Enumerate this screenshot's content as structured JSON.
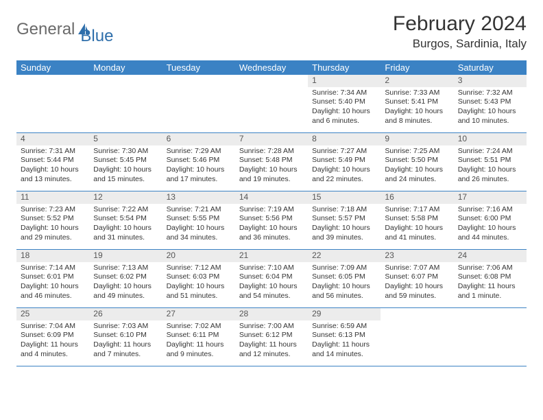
{
  "brand": {
    "name_gray": "General",
    "name_blue": "Blue"
  },
  "title": {
    "month": "February 2024",
    "location": "Burgos, Sardinia, Italy"
  },
  "colors": {
    "header_bg": "#3b82c4",
    "header_text": "#ffffff",
    "daynum_bg": "#ececec",
    "row_border": "#3b82c4",
    "body_text": "#333333",
    "logo_gray": "#6a6a6a",
    "logo_blue": "#2f6fab",
    "page_bg": "#ffffff"
  },
  "calendar": {
    "type": "table",
    "columns": [
      "Sunday",
      "Monday",
      "Tuesday",
      "Wednesday",
      "Thursday",
      "Friday",
      "Saturday"
    ],
    "weeks": [
      [
        null,
        null,
        null,
        null,
        {
          "day": "1",
          "sunrise": "Sunrise: 7:34 AM",
          "sunset": "Sunset: 5:40 PM",
          "daylight": "Daylight: 10 hours and 6 minutes."
        },
        {
          "day": "2",
          "sunrise": "Sunrise: 7:33 AM",
          "sunset": "Sunset: 5:41 PM",
          "daylight": "Daylight: 10 hours and 8 minutes."
        },
        {
          "day": "3",
          "sunrise": "Sunrise: 7:32 AM",
          "sunset": "Sunset: 5:43 PM",
          "daylight": "Daylight: 10 hours and 10 minutes."
        }
      ],
      [
        {
          "day": "4",
          "sunrise": "Sunrise: 7:31 AM",
          "sunset": "Sunset: 5:44 PM",
          "daylight": "Daylight: 10 hours and 13 minutes."
        },
        {
          "day": "5",
          "sunrise": "Sunrise: 7:30 AM",
          "sunset": "Sunset: 5:45 PM",
          "daylight": "Daylight: 10 hours and 15 minutes."
        },
        {
          "day": "6",
          "sunrise": "Sunrise: 7:29 AM",
          "sunset": "Sunset: 5:46 PM",
          "daylight": "Daylight: 10 hours and 17 minutes."
        },
        {
          "day": "7",
          "sunrise": "Sunrise: 7:28 AM",
          "sunset": "Sunset: 5:48 PM",
          "daylight": "Daylight: 10 hours and 19 minutes."
        },
        {
          "day": "8",
          "sunrise": "Sunrise: 7:27 AM",
          "sunset": "Sunset: 5:49 PM",
          "daylight": "Daylight: 10 hours and 22 minutes."
        },
        {
          "day": "9",
          "sunrise": "Sunrise: 7:25 AM",
          "sunset": "Sunset: 5:50 PM",
          "daylight": "Daylight: 10 hours and 24 minutes."
        },
        {
          "day": "10",
          "sunrise": "Sunrise: 7:24 AM",
          "sunset": "Sunset: 5:51 PM",
          "daylight": "Daylight: 10 hours and 26 minutes."
        }
      ],
      [
        {
          "day": "11",
          "sunrise": "Sunrise: 7:23 AM",
          "sunset": "Sunset: 5:52 PM",
          "daylight": "Daylight: 10 hours and 29 minutes."
        },
        {
          "day": "12",
          "sunrise": "Sunrise: 7:22 AM",
          "sunset": "Sunset: 5:54 PM",
          "daylight": "Daylight: 10 hours and 31 minutes."
        },
        {
          "day": "13",
          "sunrise": "Sunrise: 7:21 AM",
          "sunset": "Sunset: 5:55 PM",
          "daylight": "Daylight: 10 hours and 34 minutes."
        },
        {
          "day": "14",
          "sunrise": "Sunrise: 7:19 AM",
          "sunset": "Sunset: 5:56 PM",
          "daylight": "Daylight: 10 hours and 36 minutes."
        },
        {
          "day": "15",
          "sunrise": "Sunrise: 7:18 AM",
          "sunset": "Sunset: 5:57 PM",
          "daylight": "Daylight: 10 hours and 39 minutes."
        },
        {
          "day": "16",
          "sunrise": "Sunrise: 7:17 AM",
          "sunset": "Sunset: 5:58 PM",
          "daylight": "Daylight: 10 hours and 41 minutes."
        },
        {
          "day": "17",
          "sunrise": "Sunrise: 7:16 AM",
          "sunset": "Sunset: 6:00 PM",
          "daylight": "Daylight: 10 hours and 44 minutes."
        }
      ],
      [
        {
          "day": "18",
          "sunrise": "Sunrise: 7:14 AM",
          "sunset": "Sunset: 6:01 PM",
          "daylight": "Daylight: 10 hours and 46 minutes."
        },
        {
          "day": "19",
          "sunrise": "Sunrise: 7:13 AM",
          "sunset": "Sunset: 6:02 PM",
          "daylight": "Daylight: 10 hours and 49 minutes."
        },
        {
          "day": "20",
          "sunrise": "Sunrise: 7:12 AM",
          "sunset": "Sunset: 6:03 PM",
          "daylight": "Daylight: 10 hours and 51 minutes."
        },
        {
          "day": "21",
          "sunrise": "Sunrise: 7:10 AM",
          "sunset": "Sunset: 6:04 PM",
          "daylight": "Daylight: 10 hours and 54 minutes."
        },
        {
          "day": "22",
          "sunrise": "Sunrise: 7:09 AM",
          "sunset": "Sunset: 6:05 PM",
          "daylight": "Daylight: 10 hours and 56 minutes."
        },
        {
          "day": "23",
          "sunrise": "Sunrise: 7:07 AM",
          "sunset": "Sunset: 6:07 PM",
          "daylight": "Daylight: 10 hours and 59 minutes."
        },
        {
          "day": "24",
          "sunrise": "Sunrise: 7:06 AM",
          "sunset": "Sunset: 6:08 PM",
          "daylight": "Daylight: 11 hours and 1 minute."
        }
      ],
      [
        {
          "day": "25",
          "sunrise": "Sunrise: 7:04 AM",
          "sunset": "Sunset: 6:09 PM",
          "daylight": "Daylight: 11 hours and 4 minutes."
        },
        {
          "day": "26",
          "sunrise": "Sunrise: 7:03 AM",
          "sunset": "Sunset: 6:10 PM",
          "daylight": "Daylight: 11 hours and 7 minutes."
        },
        {
          "day": "27",
          "sunrise": "Sunrise: 7:02 AM",
          "sunset": "Sunset: 6:11 PM",
          "daylight": "Daylight: 11 hours and 9 minutes."
        },
        {
          "day": "28",
          "sunrise": "Sunrise: 7:00 AM",
          "sunset": "Sunset: 6:12 PM",
          "daylight": "Daylight: 11 hours and 12 minutes."
        },
        {
          "day": "29",
          "sunrise": "Sunrise: 6:59 AM",
          "sunset": "Sunset: 6:13 PM",
          "daylight": "Daylight: 11 hours and 14 minutes."
        },
        null,
        null
      ]
    ]
  }
}
